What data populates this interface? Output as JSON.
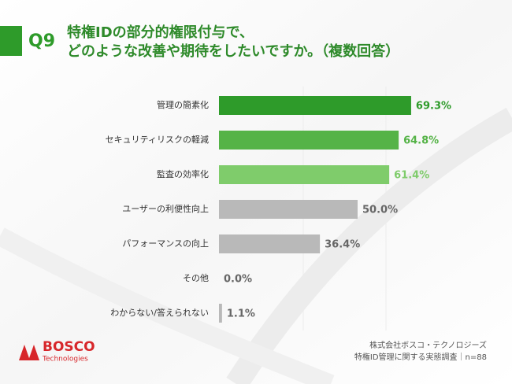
{
  "chart_data": {
    "type": "bar",
    "orientation": "horizontal",
    "question": "Q9",
    "title": [
      "特権IDの部分的権限付与で、",
      "どのような改善や期待をしたいですか。（複数回答）"
    ],
    "categories": [
      "管理の簡素化",
      "セキュリティリスクの軽減",
      "監査の効率化",
      "ユーザーの利便性向上",
      "パフォーマンスの向上",
      "その他",
      "わからない/答えられない"
    ],
    "values": [
      69.3,
      64.8,
      61.4,
      50.0,
      36.4,
      0.0,
      1.1
    ],
    "value_labels": [
      "69.3%",
      "64.8%",
      "61.4%",
      "50.0%",
      "36.4%",
      "0.0%",
      "1.1%"
    ],
    "colors": [
      "#2e9b2a",
      "#55b347",
      "#7fcc6b",
      "#b9b9b9",
      "#b9b9b9",
      "#b9b9b9",
      "#b9b9b9"
    ],
    "label_colors": [
      "#2e9b2a",
      "#55b347",
      "#7fcc6b",
      "#666666",
      "#666666",
      "#666666",
      "#666666"
    ],
    "xlim": [
      0,
      100
    ],
    "logo": {
      "name": "BOSCO",
      "subtitle": "Technologies"
    },
    "source": [
      "株式会社ボスコ・テクノロジーズ",
      "特権ID管理に関する実態調査｜n=88"
    ]
  }
}
